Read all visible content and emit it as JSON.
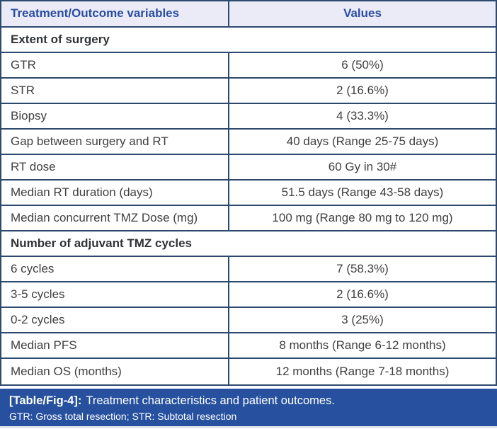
{
  "table": {
    "headers": [
      "Treatment/Outcome variables",
      "Values"
    ],
    "rows": [
      {
        "type": "section",
        "label": "Extent of surgery"
      },
      {
        "type": "data",
        "label": "GTR",
        "value": "6 (50%)"
      },
      {
        "type": "data",
        "label": "STR",
        "value": "2 (16.6%)"
      },
      {
        "type": "data",
        "label": "Biopsy",
        "value": "4 (33.3%)"
      },
      {
        "type": "data",
        "label": "Gap between surgery and RT",
        "value": "40 days (Range 25-75 days)"
      },
      {
        "type": "data",
        "label": "RT dose",
        "value": "60 Gy in 30#"
      },
      {
        "type": "data",
        "label": "Median RT duration (days)",
        "value": "51.5 days (Range 43-58 days)"
      },
      {
        "type": "data",
        "label": "Median concurrent TMZ Dose (mg)",
        "value": "100 mg (Range 80 mg to 120 mg)"
      },
      {
        "type": "section",
        "label": "Number of adjuvant TMZ cycles"
      },
      {
        "type": "data",
        "label": "6 cycles",
        "value": "7 (58.3%)"
      },
      {
        "type": "data",
        "label": "3-5 cycles",
        "value": "2 (16.6%)"
      },
      {
        "type": "data",
        "label": "0-2 cycles",
        "value": "3 (25%)"
      },
      {
        "type": "data",
        "label": "Median PFS",
        "value": "8 months (Range 6-12 months)"
      },
      {
        "type": "data",
        "label": "Median OS (months)",
        "value": "12 months (Range 7-18 months)"
      }
    ]
  },
  "caption": {
    "tag": "[Table/Fig-4]:",
    "text": "Treatment characteristics and patient outcomes.",
    "footnote": "GTR: Gross total resection; STR: Subtotal resection"
  },
  "colors": {
    "border": "#2d4a6e",
    "header_background": "#eaebf6",
    "header_text": "#2b4da1",
    "body_text": "#404040",
    "caption_background": "#27519e",
    "caption_text": "#ffffff"
  }
}
